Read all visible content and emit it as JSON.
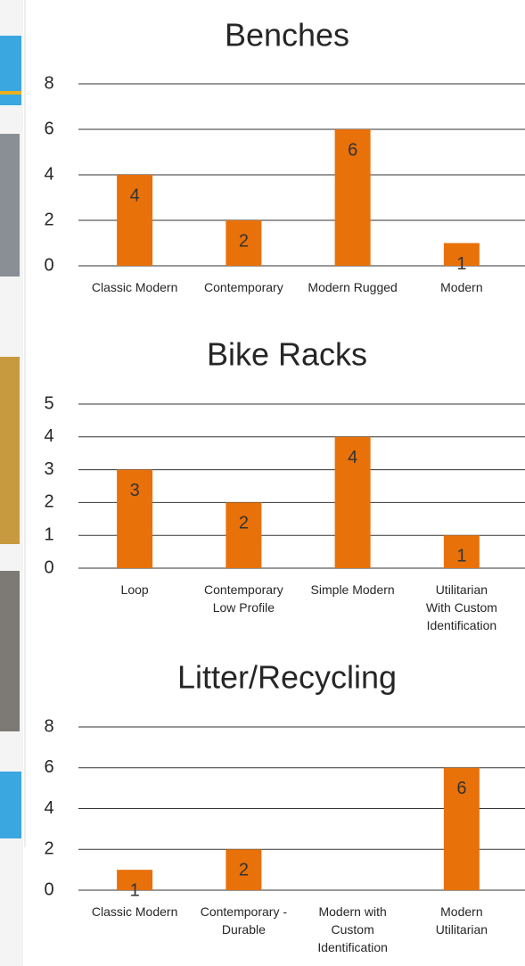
{
  "chart_data": [
    {
      "type": "bar",
      "title": "Benches",
      "categories": [
        "Classic Modern",
        "Contemporary",
        "Modern Rugged",
        "Modern"
      ],
      "values": [
        4,
        2,
        6,
        1
      ],
      "color": "#e8710a",
      "ylim": [
        0,
        8
      ],
      "yticks": [
        0,
        2,
        4,
        6,
        8
      ],
      "grid": true
    },
    {
      "type": "bar",
      "title": "Bike Racks",
      "categories": [
        "Loop",
        "Contemporary Low Profile",
        "Simple Modern",
        "Utilitarian With Custom Identification"
      ],
      "values": [
        3,
        2,
        4,
        1
      ],
      "color": "#e8710a",
      "ylim": [
        0,
        5
      ],
      "yticks": [
        0,
        1,
        2,
        3,
        4,
        5
      ],
      "grid": true
    },
    {
      "type": "bar",
      "title": "Litter/Recycling",
      "categories": [
        "Classic Modern",
        "Contemporary - Durable",
        "Modern with Custom Identification",
        "Modern Utilitarian"
      ],
      "values": [
        1,
        2,
        null,
        6
      ],
      "color": "#e8710a",
      "ylim": [
        0,
        8
      ],
      "yticks": [
        0,
        2,
        4,
        6,
        8
      ],
      "grid": true
    }
  ]
}
